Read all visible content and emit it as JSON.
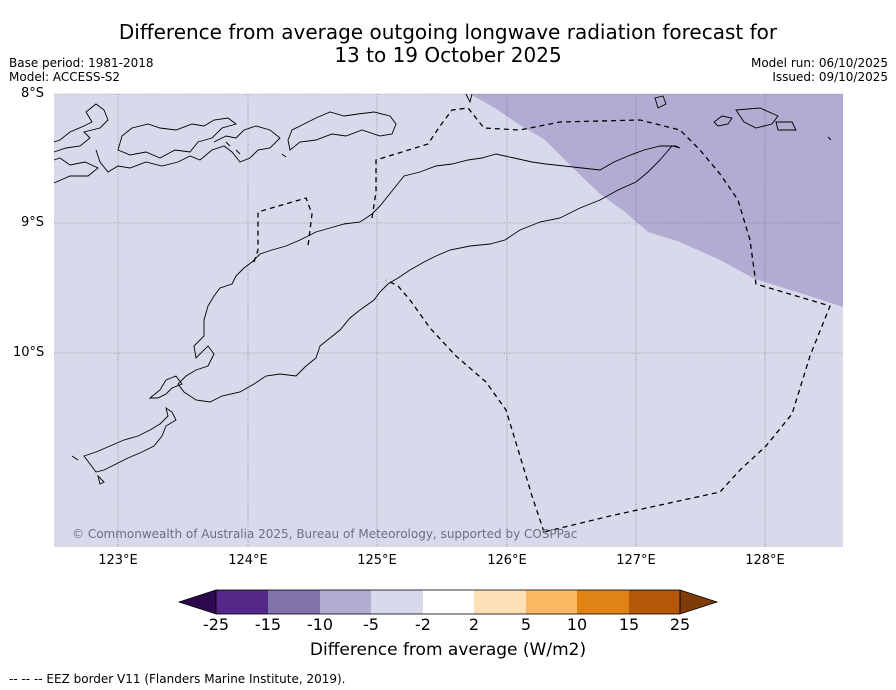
{
  "title_line1": "Difference from average outgoing longwave radiation forecast for",
  "title_line2": "13 to 19 October 2025",
  "base_period": "Base period: 1981-2018",
  "model": "Model: ACCESS-S2",
  "model_run": "Model run: 06/10/2025",
  "issued": "Issued: 09/10/2025",
  "lat_labels": [
    "8°S",
    "9°S",
    "10°S"
  ],
  "lon_labels": [
    "123°E",
    "124°E",
    "125°E",
    "126°E",
    "127°E",
    "128°E"
  ],
  "copyright": "© Commonwealth of Australia 2025, Bureau of Meteorology, supported by COSPPac",
  "colorbar": {
    "ticks": [
      "-25",
      "-15",
      "-10",
      "-5",
      "-2",
      "2",
      "5",
      "10",
      "15",
      "25"
    ],
    "label": "Difference from average (W/m2)",
    "colors": {
      "below_min": "#2d0a4e",
      "n25_n15": "#542788",
      "n15_n10": "#8073ac",
      "n10_n5": "#b2abd2",
      "n5_n2": "#d8daeb",
      "n2_2": "#ffffff",
      "p2_5": "#fee0b6",
      "p5_10": "#fdb863",
      "p10_15": "#e08214",
      "p15_25": "#b35806",
      "above_max": "#7f3b08"
    }
  },
  "map_fill": {
    "base": "#d8daeb",
    "region": "#b2abd2"
  },
  "footnote": "--  --  -- EEZ border V11 (Flanders Marine Institute, 2019)."
}
